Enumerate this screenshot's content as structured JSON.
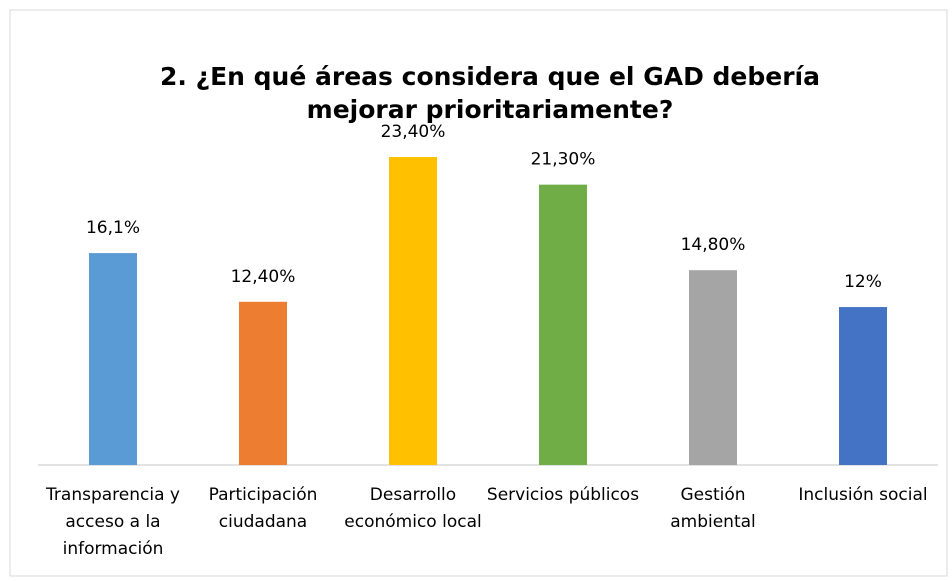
{
  "chart_data": {
    "type": "bar",
    "title": "2. ¿En qué áreas considera que el GAD debería mejorar prioritariamente?",
    "categories": [
      "Transparencia y acceso a la información",
      "Participación ciudadana",
      "Desarrollo económico local",
      "Servicios públicos",
      "Gestión ambiental",
      "Inclusión social"
    ],
    "values": [
      16.1,
      12.4,
      23.4,
      21.3,
      14.8,
      12
    ],
    "value_labels": [
      "16,1%",
      "12,40%",
      "23,40%",
      "21,30%",
      "14,80%",
      "12%"
    ],
    "colors": [
      "#5b9bd5",
      "#ed7d31",
      "#ffc000",
      "#70ad47",
      "#a5a5a5",
      "#4472c4"
    ]
  }
}
